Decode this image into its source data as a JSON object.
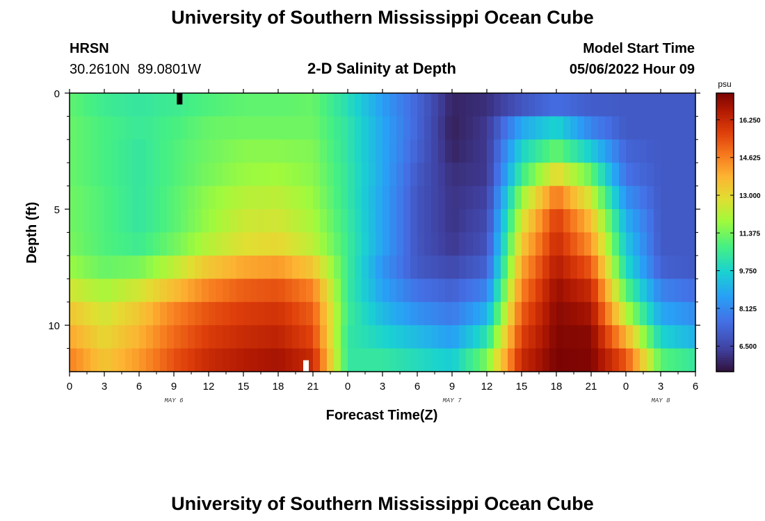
{
  "header": {
    "title": "University of Southern Mississippi Ocean Cube",
    "station": "HRSN",
    "coords": "30.2610N  89.0801W",
    "subtitle": "2-D Salinity at Depth",
    "model_label": "Model Start Time",
    "model_time": "05/06/2022 Hour 09"
  },
  "footer": {
    "title": "University of Southern Mississippi Ocean Cube"
  },
  "chart_data": {
    "type": "heatmap",
    "title": "2-D Salinity at Depth",
    "xlabel": "Forecast Time(Z)",
    "ylabel": "Depth (ft)",
    "x_ticks": [
      "0",
      "3",
      "6",
      "9",
      "12",
      "15",
      "18",
      "21",
      "0",
      "3",
      "6",
      "9",
      "12",
      "15",
      "18",
      "21",
      "0",
      "3",
      "6"
    ],
    "day_labels": [
      "MAY 6",
      "MAY 7",
      "MAY 8"
    ],
    "y_ticks": [
      "0",
      "5",
      "10"
    ],
    "xlim": [
      0,
      54
    ],
    "ylim": [
      0,
      12
    ],
    "colorbar": {
      "unit": "psu",
      "ticks": [
        "16.250",
        "14.625",
        "13.000",
        "11.375",
        "9.750",
        "8.125",
        "6.500"
      ],
      "range": [
        5.4,
        17.4
      ]
    },
    "salinity_levels": [
      {
        "depth": 0.5,
        "values": [
          11.1,
          10.6,
          10.4,
          10.6,
          10.9,
          11.1,
          11.1,
          11.2,
          10.1,
          8.6,
          7.3,
          5.8,
          6.0,
          6.9,
          7.5,
          7.1,
          7.0,
          7.0,
          7.0
        ]
      },
      {
        "depth": 1.5,
        "values": [
          11.2,
          10.8,
          10.5,
          10.8,
          11.2,
          11.3,
          11.3,
          11.3,
          10.3,
          8.8,
          7.3,
          5.7,
          6.2,
          8.8,
          9.8,
          8.0,
          7.0,
          7.0,
          7.0
        ]
      },
      {
        "depth": 2.5,
        "values": [
          11.2,
          10.8,
          10.4,
          10.9,
          11.3,
          11.6,
          11.6,
          11.5,
          10.3,
          8.8,
          7.2,
          5.8,
          6.2,
          9.8,
          11.2,
          9.6,
          7.3,
          7.0,
          7.0
        ]
      },
      {
        "depth": 3.5,
        "values": [
          11.2,
          10.8,
          10.4,
          10.9,
          11.4,
          11.8,
          11.9,
          11.6,
          10.4,
          8.8,
          7.0,
          6.0,
          6.2,
          10.6,
          13.0,
          11.2,
          7.6,
          7.0,
          7.0
        ]
      },
      {
        "depth": 4.5,
        "values": [
          11.3,
          10.9,
          10.4,
          11.0,
          11.7,
          12.2,
          12.3,
          11.8,
          10.4,
          8.7,
          6.9,
          6.1,
          6.4,
          11.8,
          14.8,
          12.5,
          8.3,
          7.0,
          7.0
        ]
      },
      {
        "depth": 5.5,
        "values": [
          11.3,
          10.9,
          10.4,
          11.0,
          11.8,
          12.5,
          12.6,
          12.0,
          10.5,
          8.7,
          6.9,
          6.1,
          6.6,
          12.6,
          15.8,
          13.6,
          9.0,
          7.0,
          7.0
        ]
      },
      {
        "depth": 6.5,
        "values": [
          11.4,
          10.9,
          10.6,
          11.3,
          12.2,
          12.8,
          13.0,
          12.3,
          10.6,
          8.7,
          6.9,
          6.2,
          6.8,
          13.3,
          16.2,
          14.3,
          9.5,
          7.0,
          7.0
        ]
      },
      {
        "depth": 7.5,
        "values": [
          11.8,
          11.2,
          11.4,
          12.3,
          13.4,
          14.0,
          14.2,
          13.4,
          10.6,
          8.4,
          7.0,
          6.6,
          7.2,
          14.0,
          16.6,
          15.3,
          10.0,
          7.2,
          7.0
        ]
      },
      {
        "depth": 8.5,
        "values": [
          12.6,
          12.0,
          12.6,
          13.6,
          14.6,
          15.2,
          15.4,
          14.6,
          10.5,
          8.7,
          7.6,
          7.2,
          8.0,
          14.6,
          17.0,
          16.2,
          11.0,
          8.0,
          7.5
        ]
      },
      {
        "depth": 9.5,
        "values": [
          13.4,
          12.6,
          13.4,
          14.6,
          15.4,
          15.8,
          16.0,
          15.2,
          10.6,
          9.2,
          8.3,
          7.8,
          9.0,
          15.2,
          17.2,
          16.8,
          12.2,
          8.8,
          8.2
        ]
      },
      {
        "depth": 10.5,
        "values": [
          14.0,
          13.0,
          13.8,
          15.0,
          15.8,
          16.2,
          16.4,
          15.6,
          10.4,
          9.8,
          9.2,
          8.6,
          10.2,
          15.7,
          17.3,
          17.2,
          13.8,
          9.8,
          9.0
        ]
      },
      {
        "depth": 11.5,
        "values": [
          14.6,
          13.4,
          14.2,
          15.4,
          16.2,
          16.6,
          16.8,
          16.2,
          10.4,
          10.4,
          10.0,
          9.6,
          11.4,
          16.2,
          17.4,
          17.3,
          15.3,
          11.0,
          10.4
        ]
      }
    ],
    "markers": [
      {
        "x": 9.5,
        "depth": 0.25,
        "color": "#000000"
      },
      {
        "x": 20.4,
        "depth": 11.75,
        "color": "#ffffff"
      }
    ]
  }
}
